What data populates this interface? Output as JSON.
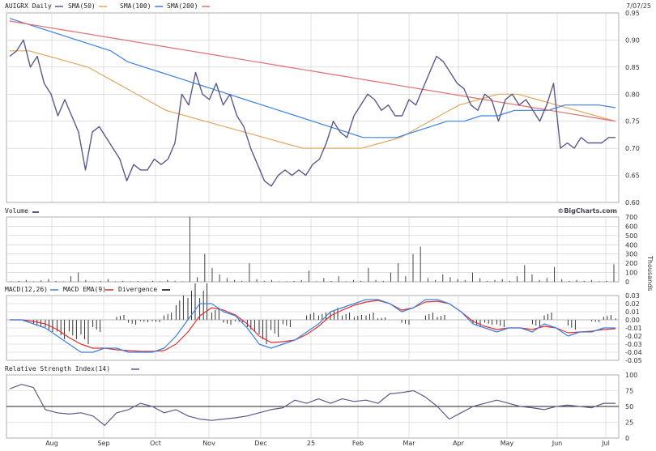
{
  "header": {
    "symbol_label": "AUIGRX Daily",
    "date": "7/07/25",
    "brand": "©BigCharts.com"
  },
  "colors": {
    "price": "#5a5a8a",
    "sma50": "#e0a860",
    "sma100": "#3a80e0",
    "sma200": "#e07070",
    "macd": "#3a80e0",
    "ema": "#e03030",
    "bars": "#000000",
    "rsi": "#5a5a8a"
  },
  "chart_data": [
    {
      "type": "line",
      "title": "AUIGRX Daily",
      "legend": [
        "SMA(50)",
        "SMA(100)",
        "SMA(200)"
      ],
      "ylim": [
        0.6,
        0.95
      ],
      "yticks": [
        "0.95",
        "0.90",
        "0.85",
        "0.80",
        "0.75",
        "0.70",
        "0.65",
        "0.60"
      ],
      "x_labels": [
        "Aug",
        "Sep",
        "Oct",
        "Nov",
        "Dec",
        "25",
        "Feb",
        "Mar",
        "Apr",
        "May",
        "Jun",
        "Jul"
      ],
      "series": [
        {
          "name": "AUIGRX",
          "values": [
            0.87,
            0.88,
            0.9,
            0.85,
            0.87,
            0.82,
            0.8,
            0.76,
            0.79,
            0.76,
            0.73,
            0.66,
            0.73,
            0.74,
            0.72,
            0.7,
            0.68,
            0.64,
            0.67,
            0.66,
            0.66,
            0.68,
            0.67,
            0.68,
            0.71,
            0.8,
            0.78,
            0.84,
            0.8,
            0.79,
            0.82,
            0.78,
            0.8,
            0.76,
            0.74,
            0.7,
            0.67,
            0.64,
            0.63,
            0.65,
            0.66,
            0.65,
            0.66,
            0.65,
            0.67,
            0.68,
            0.71,
            0.75,
            0.73,
            0.72,
            0.76,
            0.78,
            0.8,
            0.79,
            0.77,
            0.78,
            0.76,
            0.76,
            0.79,
            0.78,
            0.81,
            0.84,
            0.87,
            0.86,
            0.84,
            0.82,
            0.81,
            0.78,
            0.77,
            0.8,
            0.79,
            0.75,
            0.79,
            0.8,
            0.78,
            0.79,
            0.77,
            0.75,
            0.78,
            0.82,
            0.7,
            0.71,
            0.7,
            0.72,
            0.71,
            0.71,
            0.71,
            0.72,
            0.72
          ]
        },
        {
          "name": "SMA(50)",
          "values": [
            0.88,
            0.88,
            0.87,
            0.86,
            0.85,
            0.83,
            0.81,
            0.79,
            0.77,
            0.76,
            0.75,
            0.74,
            0.73,
            0.72,
            0.71,
            0.7,
            0.7,
            0.7,
            0.7,
            0.71,
            0.72,
            0.74,
            0.76,
            0.78,
            0.79,
            0.8,
            0.8,
            0.79,
            0.78,
            0.77,
            0.76,
            0.75
          ]
        },
        {
          "name": "SMA(100)",
          "values": [
            0.94,
            0.93,
            0.92,
            0.91,
            0.9,
            0.89,
            0.88,
            0.86,
            0.85,
            0.84,
            0.83,
            0.82,
            0.81,
            0.8,
            0.79,
            0.78,
            0.77,
            0.76,
            0.75,
            0.74,
            0.73,
            0.72,
            0.72,
            0.72,
            0.73,
            0.74,
            0.75,
            0.75,
            0.76,
            0.76,
            0.77,
            0.77,
            0.77,
            0.78,
            0.78,
            0.78,
            0.775
          ]
        },
        {
          "name": "SMA(200)",
          "values": [
            0.935,
            0.93,
            0.925,
            0.92,
            0.915,
            0.91,
            0.905,
            0.9,
            0.895,
            0.89,
            0.885,
            0.88,
            0.875,
            0.87,
            0.865,
            0.86,
            0.855,
            0.85,
            0.845,
            0.84,
            0.835,
            0.83,
            0.825,
            0.82,
            0.815,
            0.81,
            0.805,
            0.8,
            0.795,
            0.79,
            0.785,
            0.78,
            0.775,
            0.77,
            0.765,
            0.76,
            0.755,
            0.75
          ]
        }
      ]
    },
    {
      "type": "bar",
      "title": "Volume",
      "ylabel": "Thousands",
      "ylim": [
        0,
        700
      ],
      "yticks": [
        "700",
        "600",
        "500",
        "400",
        "300",
        "200",
        "100",
        "0"
      ],
      "values": [
        5,
        10,
        20,
        5,
        15,
        30,
        10,
        5,
        60,
        100,
        20,
        5,
        10,
        30,
        5,
        10,
        5,
        8,
        5,
        10,
        5,
        20,
        10,
        5,
        700,
        50,
        300,
        150,
        80,
        40,
        20,
        10,
        200,
        30,
        10,
        20,
        5,
        5,
        10,
        20,
        120,
        5,
        40,
        10,
        60,
        5,
        20,
        10,
        150,
        20,
        10,
        100,
        200,
        60,
        300,
        380,
        40,
        20,
        80,
        50,
        30,
        20,
        100,
        40,
        10,
        20,
        30,
        10,
        60,
        180,
        80,
        20,
        40,
        160,
        30,
        10,
        20,
        10,
        20,
        5,
        10,
        190
      ]
    },
    {
      "type": "line",
      "title": "MACD(12,26)",
      "legend": [
        "MACD EMA(9)",
        "Divergence"
      ],
      "ylim": [
        -0.05,
        0.03
      ],
      "yticks": [
        "0.03",
        "0.02",
        "0.01",
        "0.00",
        "-0.01",
        "-0.02",
        "-0.03",
        "-0.04",
        "-0.05"
      ],
      "series": [
        {
          "name": "MACD(12,26)",
          "values": [
            0.0,
            0.0,
            -0.005,
            -0.01,
            -0.02,
            -0.03,
            -0.04,
            -0.04,
            -0.035,
            -0.035,
            -0.04,
            -0.04,
            -0.04,
            -0.035,
            -0.02,
            0.0,
            0.02,
            0.02,
            0.01,
            0.005,
            -0.01,
            -0.03,
            -0.035,
            -0.03,
            -0.025,
            -0.015,
            -0.005,
            0.01,
            0.015,
            0.02,
            0.025,
            0.025,
            0.02,
            0.01,
            0.015,
            0.025,
            0.025,
            0.02,
            0.01,
            -0.005,
            -0.01,
            -0.015,
            -0.01,
            -0.01,
            -0.015,
            -0.005,
            -0.01,
            -0.02,
            -0.015,
            -0.015,
            -0.01,
            -0.01
          ]
        },
        {
          "name": "MACD EMA(9)",
          "values": [
            0.0,
            0.0,
            -0.002,
            -0.005,
            -0.012,
            -0.022,
            -0.03,
            -0.035,
            -0.035,
            -0.037,
            -0.038,
            -0.039,
            -0.039,
            -0.038,
            -0.03,
            -0.015,
            0.005,
            0.015,
            0.012,
            0.006,
            -0.005,
            -0.02,
            -0.028,
            -0.027,
            -0.025,
            -0.018,
            -0.008,
            0.005,
            0.012,
            0.018,
            0.022,
            0.024,
            0.02,
            0.012,
            0.015,
            0.022,
            0.023,
            0.02,
            0.01,
            -0.002,
            -0.008,
            -0.012,
            -0.01,
            -0.01,
            -0.012,
            -0.008,
            -0.01,
            -0.016,
            -0.015,
            -0.014,
            -0.012,
            -0.011
          ]
        }
      ]
    },
    {
      "type": "line",
      "title": "Relative Strength Index(14)",
      "ylim": [
        0,
        100
      ],
      "yticks": [
        "100",
        "75",
        "50",
        "25",
        "0"
      ],
      "series": [
        {
          "name": "Relative Strength Index(14)",
          "values": [
            78,
            85,
            80,
            45,
            40,
            38,
            40,
            35,
            20,
            40,
            45,
            55,
            50,
            40,
            45,
            35,
            30,
            28,
            30,
            32,
            35,
            40,
            45,
            48,
            60,
            55,
            62,
            55,
            62,
            58,
            60,
            55,
            70,
            72,
            75,
            65,
            50,
            30,
            40,
            50,
            55,
            60,
            55,
            50,
            48,
            45,
            50,
            52,
            50,
            48,
            55,
            55
          ]
        }
      ]
    }
  ]
}
